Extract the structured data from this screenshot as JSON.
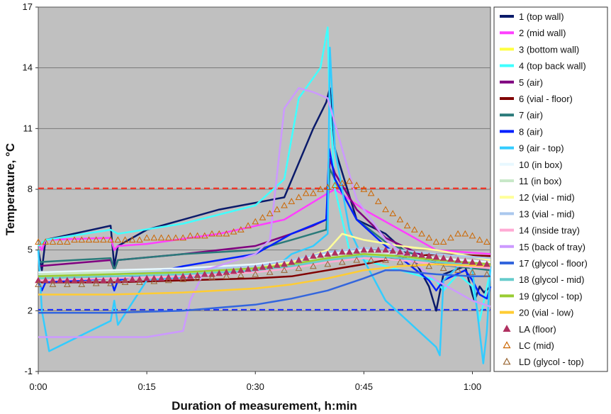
{
  "chart_data": {
    "type": "line",
    "title": "",
    "xlabel": "Duration of measurement, h:min",
    "ylabel": "Temperature, °C",
    "x_unit": "minutes",
    "xlim": [
      0,
      62.5
    ],
    "ylim": [
      -1,
      17
    ],
    "x_ticks": [
      {
        "value": 0,
        "label": "0:00"
      },
      {
        "value": 15,
        "label": "0:15"
      },
      {
        "value": 30,
        "label": "0:30"
      },
      {
        "value": 45,
        "label": "0:45"
      },
      {
        "value": 60,
        "label": "1:00"
      }
    ],
    "y_ticks": [
      -1,
      2,
      5,
      8,
      11,
      14,
      17
    ],
    "grid": "horizontal",
    "background": "#c0c0c0",
    "legend_position": "right",
    "reference_lines": [
      {
        "y": 8.05,
        "color": "#ff2a1a",
        "style": "dashed"
      },
      {
        "y": 2.05,
        "color": "#1a2aff",
        "style": "dashed"
      }
    ],
    "series": [
      {
        "name": "1 (top wall)",
        "color": "#0a1a6a",
        "x": [
          0,
          0.5,
          1,
          10,
          10.5,
          11,
          15,
          25,
          34,
          38,
          39.8,
          40.3,
          41,
          44,
          48,
          52,
          54,
          55,
          56,
          59,
          60,
          60.3,
          61,
          61.6,
          62.5
        ],
        "y": [
          5.0,
          4.0,
          5.5,
          6.2,
          4.2,
          5.2,
          6.0,
          7.0,
          7.6,
          11.0,
          12.3,
          13.0,
          10.0,
          6.5,
          5.8,
          4.5,
          3.2,
          2.0,
          3.8,
          4.2,
          2.8,
          2.5,
          3.2,
          2.9,
          3.2
        ]
      },
      {
        "name": "2 (mid wall)",
        "color": "#ff40ff",
        "x": [
          0,
          0.5,
          1,
          10,
          10.5,
          11,
          15,
          25,
          34,
          40,
          41,
          45,
          50,
          55,
          62.5
        ],
        "y": [
          5.3,
          5.0,
          5.5,
          5.6,
          5.0,
          5.2,
          5.3,
          5.8,
          6.5,
          7.8,
          8.0,
          7.0,
          6.0,
          5.0,
          4.8
        ]
      },
      {
        "name": "3 (bottom wall)",
        "color": "#ffff40",
        "x": [
          0,
          10,
          15,
          30,
          35,
          40,
          45,
          50,
          55,
          62.5
        ],
        "y": [
          3.8,
          3.9,
          3.8,
          4.0,
          4.3,
          4.6,
          4.8,
          4.6,
          4.5,
          4.3
        ]
      },
      {
        "name": "4 (top back wall)",
        "color": "#40ffff",
        "x": [
          0,
          1,
          10,
          11,
          20,
          30,
          34,
          36,
          39,
          40,
          40.2,
          41,
          43,
          45,
          50,
          55,
          56,
          58,
          60,
          61,
          62.5
        ],
        "y": [
          5.2,
          5.5,
          6.0,
          5.8,
          6.3,
          7.2,
          8.5,
          12.5,
          14.0,
          16.0,
          13.0,
          8.0,
          5.0,
          4.5,
          4.0,
          3.5,
          3.0,
          3.8,
          3.2,
          1.5,
          4.0
        ]
      },
      {
        "name": "5 (air)",
        "color": "#800080",
        "x": [
          0,
          10,
          10.5,
          11,
          20,
          30,
          35,
          38,
          39.8,
          40.3,
          41,
          44,
          48,
          55,
          62.5
        ],
        "y": [
          4.2,
          4.5,
          4.0,
          4.5,
          4.8,
          5.2,
          5.8,
          6.2,
          6.5,
          9.5,
          8.8,
          7.0,
          5.6,
          4.4,
          4.0
        ]
      },
      {
        "name": "6 (vial - floor)",
        "color": "#800000",
        "x": [
          0,
          10,
          20,
          30,
          35,
          40,
          45,
          48,
          50,
          55,
          62.5
        ],
        "y": [
          3.4,
          3.4,
          3.5,
          3.6,
          3.7,
          4.0,
          4.3,
          4.5,
          4.6,
          4.8,
          4.7
        ]
      },
      {
        "name": "7 (air)",
        "color": "#2a7a7a",
        "x": [
          0,
          10,
          10.5,
          11,
          20,
          30,
          35,
          39.8,
          40.3,
          41,
          44,
          48,
          55,
          62.5
        ],
        "y": [
          4.4,
          4.6,
          4.0,
          4.5,
          4.8,
          5.0,
          5.5,
          6.0,
          9.0,
          8.5,
          6.5,
          5.4,
          4.3,
          4.0
        ]
      },
      {
        "name": "8 (air)",
        "color": "#0020ff",
        "x": [
          0,
          0.5,
          1,
          10,
          10.5,
          11,
          20,
          30,
          35,
          39.8,
          40.2,
          41,
          44,
          48,
          54,
          55,
          56,
          59,
          60,
          61,
          62,
          62.5
        ],
        "y": [
          3.5,
          3.0,
          3.4,
          3.6,
          3.0,
          3.5,
          4.2,
          4.8,
          5.8,
          6.5,
          10.0,
          8.5,
          6.5,
          5.2,
          3.5,
          3.0,
          3.5,
          4.0,
          3.5,
          2.8,
          2.6,
          3.2
        ]
      },
      {
        "name": "9 (air - top)",
        "color": "#33ccff",
        "x": [
          0,
          0.5,
          1.5,
          10,
          10.5,
          11,
          15,
          25,
          30,
          33,
          35,
          38,
          40,
          40.3,
          41,
          43,
          45,
          48,
          55,
          55.5,
          56,
          59,
          60,
          61.5,
          62,
          62.5
        ],
        "y": [
          5.0,
          2.0,
          0.0,
          1.5,
          2.5,
          1.3,
          3.5,
          3.8,
          4.0,
          4.2,
          4.8,
          5.2,
          5.8,
          15.0,
          10.0,
          6.0,
          4.5,
          2.5,
          0.2,
          -0.2,
          3.5,
          4.5,
          4.0,
          -0.6,
          1.0,
          4.2
        ]
      },
      {
        "name": "10 (in box)",
        "color": "#e8f8ff",
        "x": [
          0,
          10,
          20,
          30,
          35,
          40,
          45,
          50,
          55,
          62.5
        ],
        "y": [
          3.9,
          4.0,
          4.1,
          4.3,
          4.5,
          4.8,
          5.0,
          4.8,
          4.6,
          4.4
        ]
      },
      {
        "name": "11 (in box)",
        "color": "#c8e8c8",
        "x": [
          0,
          10,
          20,
          30,
          35,
          40,
          45,
          50,
          55,
          62.5
        ],
        "y": [
          3.8,
          3.9,
          4.0,
          4.2,
          4.4,
          4.7,
          4.9,
          4.7,
          4.5,
          4.3
        ]
      },
      {
        "name": "12 (vial - mid)",
        "color": "#ffff99",
        "x": [
          0,
          10,
          20,
          30,
          35,
          40,
          42,
          45,
          50,
          55,
          62.5
        ],
        "y": [
          3.6,
          3.7,
          3.9,
          4.1,
          4.4,
          5.0,
          5.8,
          5.5,
          5.2,
          5.0,
          4.5
        ]
      },
      {
        "name": "13 (vial - mid)",
        "color": "#aac8ee",
        "x": [
          0,
          10,
          20,
          30,
          35,
          40,
          45,
          50,
          55,
          62.5
        ],
        "y": [
          3.7,
          3.8,
          4.0,
          4.2,
          4.5,
          4.9,
          5.1,
          5.0,
          4.8,
          4.6
        ]
      },
      {
        "name": "14 (inside tray)",
        "color": "#ffaad4",
        "x": [
          0,
          10,
          20,
          30,
          35,
          40,
          45,
          50,
          55,
          62.5
        ],
        "y": [
          3.5,
          3.6,
          3.7,
          3.9,
          4.1,
          4.4,
          4.6,
          4.5,
          4.3,
          4.1
        ]
      },
      {
        "name": "15 (back of tray)",
        "color": "#cc99ff",
        "x": [
          0,
          10,
          15,
          20,
          21,
          23,
          30,
          32,
          34,
          36,
          38,
          40,
          42,
          44,
          48,
          55,
          60,
          62.5
        ],
        "y": [
          0.7,
          0.7,
          0.7,
          1.0,
          2.5,
          4.0,
          4.8,
          5.5,
          12.0,
          13.0,
          12.8,
          12.5,
          10.0,
          7.5,
          5.5,
          3.5,
          2.5,
          2.2
        ]
      },
      {
        "name": "17 (glycol - floor)",
        "color": "#3366dd",
        "x": [
          0,
          10,
          20,
          30,
          35,
          40,
          45,
          48,
          50,
          52,
          55,
          60,
          62.5
        ],
        "y": [
          1.9,
          1.9,
          2.0,
          2.3,
          2.6,
          3.0,
          3.6,
          4.0,
          4.0,
          3.9,
          3.8,
          3.7,
          3.7
        ]
      },
      {
        "name": "18 (glycol - mid)",
        "color": "#66cccc",
        "x": [
          0,
          10,
          20,
          30,
          35,
          40,
          45,
          50,
          55,
          62.5
        ],
        "y": [
          3.6,
          3.7,
          3.8,
          4.0,
          4.2,
          4.5,
          4.7,
          4.6,
          4.4,
          4.2
        ]
      },
      {
        "name": "19 (glycol - top)",
        "color": "#99cc33",
        "x": [
          0,
          10,
          20,
          30,
          35,
          40,
          45,
          50,
          55,
          62.5
        ],
        "y": [
          3.7,
          3.8,
          3.9,
          4.1,
          4.3,
          4.6,
          4.8,
          4.7,
          4.5,
          4.3
        ]
      },
      {
        "name": "20 (vial - low)",
        "color": "#ffcc33",
        "x": [
          0,
          10,
          20,
          30,
          35,
          40,
          45,
          50,
          55,
          62.5
        ],
        "y": [
          2.8,
          2.8,
          2.9,
          3.1,
          3.3,
          3.6,
          4.0,
          4.2,
          4.3,
          4.2
        ]
      }
    ],
    "marker_series": [
      {
        "name": "LA (floor)",
        "marker": "triangle",
        "fill": "#b03060",
        "stroke": "#b03060",
        "x": [
          0,
          1,
          2,
          3,
          4,
          5,
          6,
          7,
          8,
          9,
          10,
          11,
          12,
          13,
          14,
          15,
          16,
          17,
          18,
          19,
          20,
          21,
          22,
          23,
          24,
          25,
          26,
          27,
          28,
          29,
          30,
          31,
          32,
          33,
          34,
          35,
          36,
          37,
          38,
          39,
          40,
          41,
          42,
          43,
          44,
          45,
          46,
          47,
          48,
          49,
          50,
          51,
          52,
          53,
          54,
          55,
          56,
          57,
          58,
          59,
          60,
          61,
          62
        ],
        "y": [
          3.5,
          3.5,
          3.5,
          3.5,
          3.5,
          3.5,
          3.5,
          3.5,
          3.5,
          3.5,
          3.5,
          3.5,
          3.5,
          3.55,
          3.55,
          3.6,
          3.6,
          3.6,
          3.65,
          3.65,
          3.7,
          3.7,
          3.75,
          3.8,
          3.8,
          3.85,
          3.9,
          3.95,
          4.0,
          4.05,
          4.1,
          4.15,
          4.2,
          4.25,
          4.3,
          4.4,
          4.5,
          4.6,
          4.7,
          4.75,
          4.8,
          4.85,
          4.9,
          4.9,
          4.95,
          5.0,
          5.0,
          5.0,
          5.0,
          4.95,
          4.9,
          4.85,
          4.8,
          4.75,
          4.7,
          4.65,
          4.6,
          4.55,
          4.5,
          4.45,
          4.4,
          4.35,
          4.3
        ]
      },
      {
        "name": "LC (mid)",
        "marker": "triangle-open",
        "fill": "none",
        "stroke": "#cc6600",
        "x": [
          0,
          1,
          2,
          3,
          4,
          5,
          6,
          7,
          8,
          9,
          10,
          11,
          12,
          13,
          14,
          15,
          16,
          17,
          18,
          19,
          20,
          21,
          22,
          23,
          24,
          25,
          26,
          27,
          28,
          29,
          30,
          31,
          32,
          33,
          34,
          35,
          36,
          37,
          38,
          39,
          40,
          41,
          42,
          43,
          44,
          45,
          46,
          47,
          48,
          49,
          50,
          51,
          52,
          53,
          54,
          55,
          56,
          57,
          58,
          59,
          60,
          61,
          62
        ],
        "y": [
          5.4,
          5.4,
          5.4,
          5.4,
          5.4,
          5.5,
          5.5,
          5.5,
          5.5,
          5.5,
          5.5,
          5.5,
          5.5,
          5.5,
          5.5,
          5.6,
          5.6,
          5.6,
          5.6,
          5.6,
          5.6,
          5.7,
          5.7,
          5.7,
          5.8,
          5.8,
          5.8,
          5.9,
          6.0,
          6.2,
          6.4,
          6.6,
          6.8,
          7.0,
          7.2,
          7.4,
          7.6,
          7.8,
          7.8,
          8.0,
          8.1,
          8.2,
          8.3,
          8.4,
          8.2,
          8.0,
          7.8,
          7.4,
          7.0,
          6.8,
          6.5,
          6.2,
          6.0,
          5.8,
          5.6,
          5.4,
          5.4,
          5.6,
          5.8,
          5.8,
          5.7,
          5.5,
          5.4
        ]
      },
      {
        "name": "LD (glycol - top)",
        "marker": "triangle-open",
        "fill": "none",
        "stroke": "#996633",
        "x": [
          0,
          2,
          4,
          6,
          8,
          10,
          12,
          14,
          16,
          18,
          20,
          22,
          24,
          26,
          28,
          30,
          32,
          34,
          36,
          38,
          40,
          42,
          44,
          46,
          48,
          50,
          52,
          54,
          56,
          58,
          60,
          62
        ],
        "y": [
          3.3,
          3.3,
          3.3,
          3.3,
          3.35,
          3.35,
          3.4,
          3.4,
          3.45,
          3.5,
          3.55,
          3.6,
          3.65,
          3.7,
          3.75,
          3.8,
          3.9,
          4.0,
          4.1,
          4.2,
          4.3,
          4.4,
          4.5,
          4.5,
          4.5,
          4.4,
          4.3,
          4.2,
          4.1,
          4.0,
          3.9,
          3.8
        ]
      }
    ]
  }
}
